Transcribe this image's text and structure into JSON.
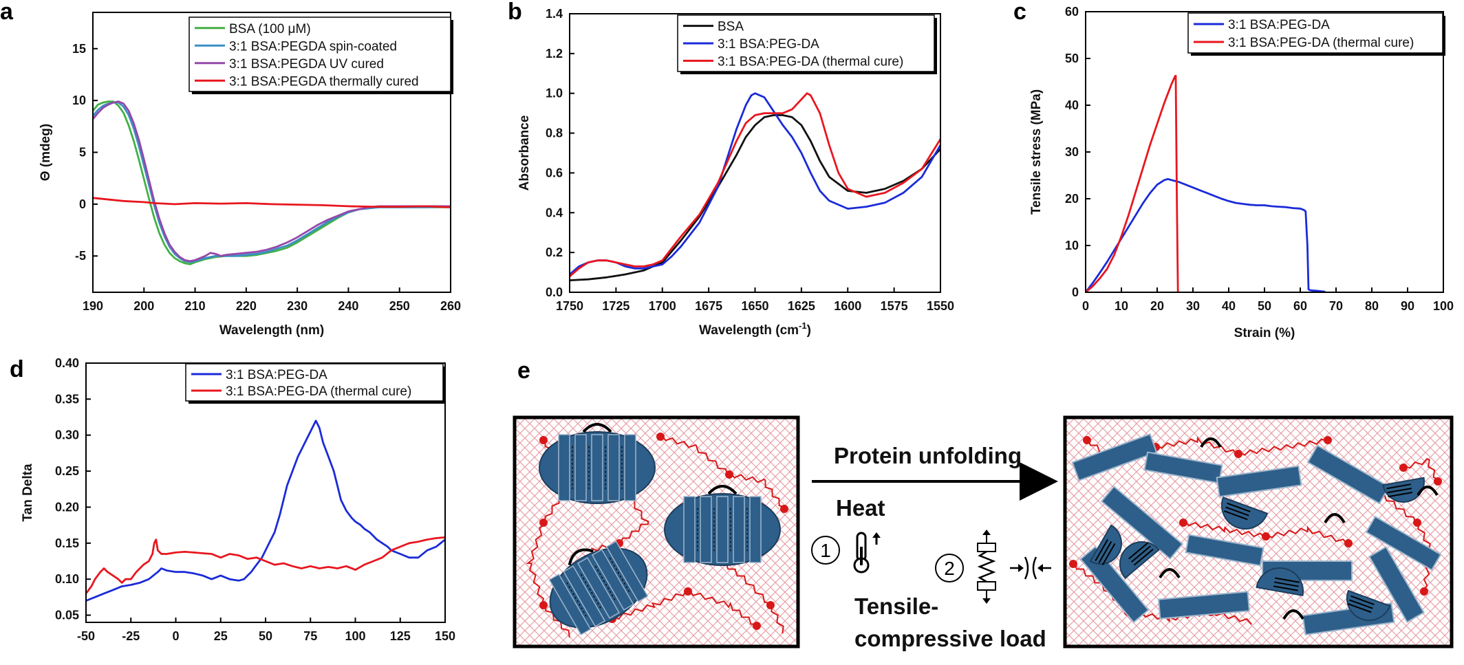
{
  "colors": {
    "bsa_green": "#43b043",
    "spin_teal": "#3a8fc4",
    "uv_purple": "#9548a8",
    "thermal_red": "#e8161e",
    "bsa_black": "#111111",
    "pegda_blue": "#1a2bd8",
    "protein_blue": "#2e5f8a",
    "polymer_red": "#d81818"
  },
  "chart_data": [
    {
      "id": "a",
      "type": "line",
      "letter": "a",
      "xlabel": "Wavelength (nm)",
      "ylabel": "Θ (mdeg)",
      "xlim": [
        190,
        260
      ],
      "ylim": [
        -8.5,
        18.5
      ],
      "xticks": [
        190,
        200,
        210,
        220,
        230,
        240,
        250,
        260
      ],
      "yticks": [
        -5,
        0,
        5,
        10,
        15
      ],
      "legend_position": "top-right",
      "series": [
        {
          "name": "BSA (100 μM)",
          "color": "#43b043",
          "x": [
            190,
            191,
            192,
            193,
            194,
            195,
            196,
            197,
            198,
            199,
            200,
            201,
            202,
            203,
            204,
            205,
            206,
            207,
            208,
            209,
            210,
            212,
            214,
            216,
            218,
            220,
            222,
            224,
            226,
            228,
            230,
            232,
            234,
            236,
            238,
            240,
            242,
            244,
            246,
            248,
            250,
            255,
            260
          ],
          "y": [
            9.0,
            9.6,
            9.8,
            9.9,
            9.9,
            9.5,
            8.8,
            7.6,
            6.1,
            4.3,
            2.4,
            0.5,
            -1.3,
            -2.8,
            -3.9,
            -4.7,
            -5.2,
            -5.5,
            -5.7,
            -5.8,
            -5.6,
            -5.3,
            -5.1,
            -5.0,
            -5.0,
            -5.0,
            -4.9,
            -4.7,
            -4.5,
            -4.2,
            -3.7,
            -3.1,
            -2.5,
            -1.9,
            -1.3,
            -0.8,
            -0.5,
            -0.4,
            -0.3,
            -0.3,
            -0.3,
            -0.3,
            -0.3
          ]
        },
        {
          "name": "3:1 BSA:PEGDA spin-coated",
          "color": "#3a8fc4",
          "x": [
            190,
            191,
            192,
            193,
            194,
            195,
            196,
            197,
            198,
            199,
            200,
            201,
            202,
            203,
            204,
            205,
            206,
            207,
            208,
            209,
            210,
            212,
            214,
            216,
            218,
            220,
            222,
            224,
            226,
            228,
            230,
            232,
            234,
            236,
            238,
            240,
            242,
            244,
            246,
            248,
            250,
            255,
            260
          ],
          "y": [
            8.5,
            9.1,
            9.5,
            9.7,
            9.8,
            9.8,
            9.4,
            8.6,
            7.3,
            5.6,
            3.7,
            1.8,
            -0.1,
            -1.8,
            -3.1,
            -4.1,
            -4.8,
            -5.2,
            -5.5,
            -5.6,
            -5.5,
            -5.2,
            -5.0,
            -5.0,
            -5.0,
            -4.9,
            -4.8,
            -4.6,
            -4.3,
            -4.0,
            -3.5,
            -2.9,
            -2.3,
            -1.7,
            -1.2,
            -0.8,
            -0.5,
            -0.4,
            -0.3,
            -0.3,
            -0.3,
            -0.3,
            -0.2
          ]
        },
        {
          "name": "3:1 BSA:PEGDA UV cured",
          "color": "#9548a8",
          "x": [
            190,
            191,
            192,
            193,
            194,
            195,
            196,
            197,
            198,
            199,
            200,
            201,
            202,
            203,
            204,
            205,
            206,
            207,
            208,
            209,
            210,
            212,
            213,
            214,
            215,
            216,
            218,
            220,
            222,
            224,
            226,
            228,
            230,
            232,
            234,
            236,
            238,
            240,
            242,
            244,
            246,
            248,
            250,
            255,
            260
          ],
          "y": [
            8.2,
            8.8,
            9.3,
            9.6,
            9.8,
            9.9,
            9.7,
            9.0,
            7.8,
            6.2,
            4.3,
            2.3,
            0.3,
            -1.4,
            -2.8,
            -3.9,
            -4.6,
            -5.1,
            -5.4,
            -5.5,
            -5.4,
            -5.0,
            -4.7,
            -4.8,
            -5.0,
            -4.9,
            -4.8,
            -4.7,
            -4.6,
            -4.4,
            -4.1,
            -3.7,
            -3.2,
            -2.6,
            -2.0,
            -1.5,
            -1.1,
            -0.7,
            -0.5,
            -0.3,
            -0.2,
            -0.2,
            -0.2,
            -0.2,
            -0.2
          ]
        },
        {
          "name": "3:1 BSA:PEGDA thermally cured",
          "color": "#e8161e",
          "x": [
            190,
            192,
            194,
            196,
            198,
            200,
            202,
            204,
            206,
            208,
            210,
            215,
            220,
            225,
            230,
            235,
            240,
            245,
            250,
            255,
            260
          ],
          "y": [
            0.6,
            0.5,
            0.4,
            0.3,
            0.25,
            0.2,
            0.1,
            0.05,
            0.0,
            0.05,
            0.1,
            0.05,
            0.1,
            0.0,
            -0.05,
            -0.1,
            -0.2,
            -0.25,
            -0.25,
            -0.2,
            -0.3
          ]
        }
      ]
    },
    {
      "id": "b",
      "type": "line",
      "letter": "b",
      "xlabel": "Wavelength (cm",
      "xlabel_sup": "-1",
      "xlabel_end": ")",
      "ylabel": "Absorbance",
      "xlim": [
        1750,
        1550
      ],
      "ylim": [
        0,
        1.4
      ],
      "xticks": [
        1750,
        1725,
        1700,
        1675,
        1650,
        1625,
        1600,
        1575,
        1550
      ],
      "yticks": [
        0.0,
        0.2,
        0.4,
        0.6,
        0.8,
        1.0,
        1.2,
        1.4
      ],
      "legend_position": "top-right",
      "series": [
        {
          "name": "BSA",
          "color": "#111111",
          "x": [
            1750,
            1740,
            1730,
            1720,
            1710,
            1700,
            1690,
            1680,
            1670,
            1660,
            1655,
            1650,
            1645,
            1640,
            1635,
            1630,
            1625,
            1620,
            1615,
            1610,
            1600,
            1590,
            1580,
            1570,
            1560,
            1550
          ],
          "y": [
            0.06,
            0.065,
            0.075,
            0.09,
            0.11,
            0.15,
            0.26,
            0.38,
            0.53,
            0.69,
            0.78,
            0.84,
            0.88,
            0.89,
            0.89,
            0.88,
            0.84,
            0.76,
            0.66,
            0.58,
            0.51,
            0.5,
            0.52,
            0.56,
            0.62,
            0.72
          ]
        },
        {
          "name": "3:1 BSA:PEG-DA",
          "color": "#1a2bd8",
          "x": [
            1750,
            1745,
            1740,
            1735,
            1730,
            1725,
            1720,
            1715,
            1710,
            1705,
            1700,
            1695,
            1690,
            1680,
            1670,
            1660,
            1655,
            1652,
            1650,
            1645,
            1640,
            1635,
            1630,
            1625,
            1620,
            1615,
            1610,
            1600,
            1590,
            1580,
            1570,
            1560,
            1550
          ],
          "y": [
            0.09,
            0.13,
            0.15,
            0.16,
            0.16,
            0.15,
            0.13,
            0.12,
            0.12,
            0.13,
            0.14,
            0.18,
            0.23,
            0.35,
            0.53,
            0.82,
            0.94,
            0.99,
            1.0,
            0.98,
            0.91,
            0.84,
            0.78,
            0.7,
            0.6,
            0.51,
            0.46,
            0.42,
            0.43,
            0.45,
            0.5,
            0.58,
            0.74
          ]
        },
        {
          "name": "3:1 BSA:PEG-DA (thermal cure)",
          "color": "#e8161e",
          "x": [
            1750,
            1745,
            1740,
            1735,
            1730,
            1725,
            1720,
            1715,
            1710,
            1705,
            1700,
            1695,
            1690,
            1680,
            1670,
            1660,
            1655,
            1650,
            1645,
            1640,
            1635,
            1630,
            1625,
            1622,
            1620,
            1615,
            1610,
            1605,
            1600,
            1590,
            1580,
            1570,
            1560,
            1550
          ],
          "y": [
            0.08,
            0.12,
            0.15,
            0.16,
            0.16,
            0.15,
            0.14,
            0.13,
            0.13,
            0.14,
            0.16,
            0.22,
            0.28,
            0.39,
            0.55,
            0.76,
            0.85,
            0.89,
            0.9,
            0.9,
            0.9,
            0.92,
            0.97,
            1.0,
            0.99,
            0.9,
            0.74,
            0.6,
            0.52,
            0.48,
            0.5,
            0.55,
            0.62,
            0.77
          ]
        }
      ]
    },
    {
      "id": "c",
      "type": "line",
      "letter": "c",
      "xlabel": "Strain (%)",
      "ylabel": "Tensile stress (MPa)",
      "xlim": [
        0,
        100
      ],
      "ylim": [
        0,
        60
      ],
      "xticks": [
        0,
        10,
        20,
        30,
        40,
        50,
        60,
        70,
        80,
        90,
        100
      ],
      "yticks": [
        0,
        10,
        20,
        30,
        40,
        50,
        60
      ],
      "legend_position": "top-right",
      "series": [
        {
          "name": "3:1 BSA:PEG-DA",
          "color": "#1a2bd8",
          "x": [
            0,
            2,
            4,
            6,
            8,
            10,
            12,
            14,
            16,
            18,
            20,
            22,
            23,
            24,
            26,
            28,
            30,
            32,
            34,
            36,
            38,
            40,
            42,
            44,
            46,
            48,
            50,
            52,
            54,
            56,
            58,
            60,
            61,
            61.5,
            62,
            62.3,
            63,
            65,
            67
          ],
          "y": [
            0,
            2,
            4.2,
            6.5,
            9,
            11.5,
            14,
            16.5,
            19,
            21.2,
            23,
            24,
            24.2,
            24,
            23.6,
            23,
            22.4,
            21.8,
            21.2,
            20.6,
            20,
            19.5,
            19.1,
            18.9,
            18.7,
            18.6,
            18.6,
            18.4,
            18.3,
            18.2,
            18,
            17.9,
            17.6,
            17.3,
            10,
            0.6,
            0.4,
            0.3,
            0.1
          ]
        },
        {
          "name": "3:1 BSA:PEG-DA (thermal cure)",
          "color": "#e8161e",
          "x": [
            0,
            2,
            4,
            6,
            8,
            10,
            12,
            14,
            16,
            18,
            20,
            22,
            24,
            25,
            25.2,
            25.5,
            25.8
          ],
          "y": [
            0,
            1.3,
            3,
            5,
            8,
            12,
            16.5,
            21.5,
            26.5,
            31.5,
            36,
            40.5,
            44.5,
            46.2,
            46.3,
            20,
            0
          ]
        }
      ]
    },
    {
      "id": "d",
      "type": "line",
      "letter": "d",
      "xlabel": "",
      "ylabel": "Tan Delta",
      "xlim": [
        -50,
        150
      ],
      "ylim": [
        0.04,
        0.4
      ],
      "xticks": [
        -50,
        -25,
        0,
        25,
        50,
        75,
        100,
        125,
        150
      ],
      "yticks": [
        0.05,
        0.1,
        0.15,
        0.2,
        0.25,
        0.3,
        0.35,
        0.4
      ],
      "legend_position": "top-right",
      "series": [
        {
          "name": "3:1 BSA:PEG-DA",
          "color": "#1a2bd8",
          "x": [
            -50,
            -45,
            -40,
            -35,
            -30,
            -25,
            -20,
            -15,
            -10,
            -8,
            -5,
            0,
            5,
            10,
            15,
            20,
            25,
            30,
            35,
            38,
            40,
            42,
            45,
            48,
            50,
            52,
            55,
            58,
            60,
            62,
            65,
            68,
            70,
            72,
            75,
            77,
            78,
            79,
            80,
            82,
            85,
            88,
            90,
            92,
            95,
            98,
            100,
            103,
            105,
            108,
            110,
            112,
            115,
            118,
            120,
            125,
            130,
            135,
            140,
            145,
            150
          ],
          "y": [
            0.07,
            0.075,
            0.08,
            0.085,
            0.09,
            0.092,
            0.095,
            0.1,
            0.11,
            0.115,
            0.112,
            0.11,
            0.11,
            0.108,
            0.105,
            0.1,
            0.105,
            0.1,
            0.098,
            0.1,
            0.105,
            0.11,
            0.12,
            0.13,
            0.14,
            0.15,
            0.165,
            0.19,
            0.21,
            0.23,
            0.25,
            0.27,
            0.28,
            0.29,
            0.305,
            0.315,
            0.32,
            0.315,
            0.31,
            0.29,
            0.27,
            0.25,
            0.23,
            0.21,
            0.195,
            0.185,
            0.18,
            0.175,
            0.17,
            0.165,
            0.16,
            0.155,
            0.15,
            0.145,
            0.14,
            0.135,
            0.13,
            0.13,
            0.14,
            0.145,
            0.155
          ]
        },
        {
          "name": "3:1 BSA:PEG-DA (thermal cure)",
          "color": "#e8161e",
          "x": [
            -50,
            -47,
            -45,
            -42,
            -40,
            -38,
            -35,
            -32,
            -30,
            -28,
            -25,
            -22,
            -20,
            -18,
            -15,
            -13,
            -12,
            -11,
            -10,
            -8,
            -5,
            0,
            5,
            10,
            15,
            20,
            25,
            30,
            35,
            40,
            45,
            50,
            55,
            60,
            65,
            70,
            75,
            80,
            85,
            90,
            95,
            100,
            105,
            110,
            115,
            120,
            125,
            130,
            135,
            140,
            145,
            150
          ],
          "y": [
            0.08,
            0.09,
            0.1,
            0.11,
            0.115,
            0.11,
            0.105,
            0.1,
            0.095,
            0.1,
            0.1,
            0.11,
            0.115,
            0.12,
            0.125,
            0.135,
            0.15,
            0.155,
            0.14,
            0.135,
            0.135,
            0.137,
            0.138,
            0.137,
            0.136,
            0.135,
            0.13,
            0.135,
            0.133,
            0.128,
            0.13,
            0.125,
            0.12,
            0.122,
            0.118,
            0.115,
            0.118,
            0.115,
            0.117,
            0.115,
            0.118,
            0.113,
            0.12,
            0.125,
            0.13,
            0.14,
            0.145,
            0.15,
            0.152,
            0.155,
            0.157,
            0.158
          ]
        }
      ]
    }
  ],
  "diagram_e": {
    "letter": "e",
    "arrow_label": "Protein unfolding",
    "heat_label": "Heat",
    "step1": "1",
    "step2": "2",
    "load_label_line1": "Tensile-",
    "load_label_line2": "compressive load"
  }
}
